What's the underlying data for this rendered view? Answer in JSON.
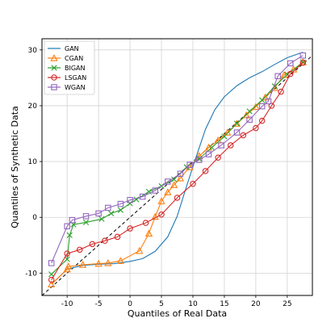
{
  "chart_data": {
    "type": "line",
    "xlabel": "Quantiles of Real Data",
    "ylabel": "Quantiles of Synthetic Data",
    "xlim": [
      -14,
      29
    ],
    "ylim": [
      -14,
      32
    ],
    "x_ticks": [
      -10,
      -5,
      0,
      5,
      10,
      15,
      20,
      25
    ],
    "y_ticks": [
      -10,
      0,
      10,
      20,
      30
    ],
    "grid": true,
    "legend_position": "top-left",
    "reference_line": "diagonal dashed y = x",
    "series": [
      {
        "name": "GAN",
        "color": "#1f77b4",
        "marker": "none",
        "points": [
          [
            -12.5,
            -12.0
          ],
          [
            -10,
            -9.3
          ],
          [
            -7.5,
            -8.6
          ],
          [
            -5,
            -8.4
          ],
          [
            -2.5,
            -8.3
          ],
          [
            0,
            -7.9
          ],
          [
            2,
            -7.4
          ],
          [
            4,
            -6.1
          ],
          [
            6,
            -3.5
          ],
          [
            7.5,
            0.2
          ],
          [
            9,
            5.6
          ],
          [
            10.5,
            10.8
          ],
          [
            12,
            15.8
          ],
          [
            13.5,
            19.3
          ],
          [
            15,
            21.6
          ],
          [
            17,
            23.6
          ],
          [
            19,
            25.0
          ],
          [
            21,
            26.1
          ],
          [
            23,
            27.4
          ],
          [
            25,
            28.6
          ],
          [
            27.5,
            29.6
          ]
        ]
      },
      {
        "name": "CGAN",
        "color": "#ff7f0e",
        "marker": "triangle",
        "points": [
          [
            -12.5,
            -12.0
          ],
          [
            -10,
            -9.3
          ],
          [
            -9.8,
            -8.8
          ],
          [
            -7.5,
            -8.5
          ],
          [
            -5,
            -8.3
          ],
          [
            -3.5,
            -8.2
          ],
          [
            -1.5,
            -7.8
          ],
          [
            1.5,
            -6.0
          ],
          [
            3,
            -2.9
          ],
          [
            4,
            0.1
          ],
          [
            5,
            2.9
          ],
          [
            6,
            4.5
          ],
          [
            7,
            5.8
          ],
          [
            8,
            7.0
          ],
          [
            9.5,
            9.0
          ],
          [
            11,
            11.0
          ],
          [
            12.5,
            12.5
          ],
          [
            14,
            13.8
          ],
          [
            15.5,
            15.2
          ],
          [
            17,
            16.8
          ],
          [
            18.5,
            18.3
          ],
          [
            20,
            19.8
          ],
          [
            21.5,
            21.5
          ],
          [
            23,
            23.2
          ],
          [
            24.5,
            25.5
          ],
          [
            26,
            26.5
          ],
          [
            27.5,
            27.8
          ]
        ]
      },
      {
        "name": "BIGAN",
        "color": "#2ca02c",
        "marker": "x",
        "points": [
          [
            -12.5,
            -10.2
          ],
          [
            -10,
            -7.5
          ],
          [
            -9.6,
            -3.2
          ],
          [
            -9,
            -1.3
          ],
          [
            -7,
            -0.9
          ],
          [
            -4.5,
            -0.3
          ],
          [
            -3,
            0.7
          ],
          [
            -1.5,
            1.3
          ],
          [
            0,
            2.5
          ],
          [
            1,
            3.2
          ],
          [
            3,
            4.6
          ],
          [
            5,
            5.6
          ],
          [
            7,
            6.8
          ],
          [
            9,
            9.0
          ],
          [
            11,
            10.5
          ],
          [
            13,
            12.5
          ],
          [
            15,
            14.5
          ],
          [
            17,
            16.8
          ],
          [
            19,
            19.0
          ],
          [
            21,
            21.0
          ],
          [
            23,
            23.5
          ],
          [
            25,
            25.6
          ],
          [
            27.5,
            27.8
          ]
        ]
      },
      {
        "name": "LSGAN",
        "color": "#d62728",
        "marker": "circle",
        "points": [
          [
            -12.5,
            -11.2
          ],
          [
            -10,
            -6.5
          ],
          [
            -8,
            -5.8
          ],
          [
            -6,
            -4.8
          ],
          [
            -4,
            -4.2
          ],
          [
            -2,
            -3.5
          ],
          [
            0,
            -2.0
          ],
          [
            2.5,
            -1.0
          ],
          [
            5,
            0.5
          ],
          [
            7.5,
            3.5
          ],
          [
            10,
            6.0
          ],
          [
            12,
            8.3
          ],
          [
            14,
            10.7
          ],
          [
            16,
            12.9
          ],
          [
            18,
            14.7
          ],
          [
            20,
            16.0
          ],
          [
            21,
            17.3
          ],
          [
            22.5,
            20.0
          ],
          [
            24,
            22.5
          ],
          [
            25.5,
            25.7
          ],
          [
            27.5,
            27.7
          ]
        ]
      },
      {
        "name": "WGAN",
        "color": "#9467bd",
        "marker": "square",
        "points": [
          [
            -12.5,
            -8.2
          ],
          [
            -10,
            -1.6
          ],
          [
            -9.2,
            -0.5
          ],
          [
            -7,
            0.2
          ],
          [
            -5,
            0.7
          ],
          [
            -3.5,
            1.7
          ],
          [
            -1.5,
            2.4
          ],
          [
            0,
            3.1
          ],
          [
            2,
            3.7
          ],
          [
            4,
            4.8
          ],
          [
            6,
            6.4
          ],
          [
            8,
            7.8
          ],
          [
            9.5,
            9.4
          ],
          [
            11,
            10.3
          ],
          [
            12.5,
            11.3
          ],
          [
            14.5,
            12.9
          ],
          [
            17,
            15.2
          ],
          [
            19,
            17.5
          ],
          [
            21,
            19.9
          ],
          [
            22,
            20.8
          ],
          [
            23.5,
            25.3
          ],
          [
            25.5,
            27.6
          ],
          [
            27.5,
            29.0
          ]
        ]
      }
    ]
  }
}
